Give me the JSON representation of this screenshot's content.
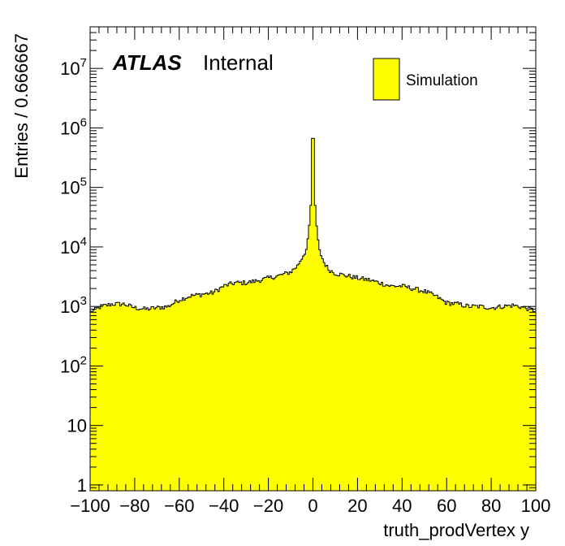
{
  "chart_data": {
    "type": "histogram",
    "xlabel": "truth_prodVertex y",
    "ylabel": "Entries / 0.666667",
    "xlim": [
      -100,
      100
    ],
    "ylim": [
      0.8,
      50000000
    ],
    "y_scale": "log",
    "bin_width": 0.666667,
    "x_ticks": [
      -100,
      -80,
      -60,
      -40,
      -20,
      0,
      20,
      40,
      60,
      80,
      100
    ],
    "x_tick_labels": [
      "−100",
      "−80",
      "−60",
      "−40",
      "−20",
      "0",
      "20",
      "40",
      "60",
      "80",
      "100"
    ],
    "y_ticks": [
      {
        "value": 1,
        "base": "1",
        "exp": ""
      },
      {
        "value": 10,
        "base": "10",
        "exp": ""
      },
      {
        "value": 100,
        "base": "10",
        "exp": "2"
      },
      {
        "value": 1000,
        "base": "10",
        "exp": "3"
      },
      {
        "value": 10000,
        "base": "10",
        "exp": "4"
      },
      {
        "value": 100000,
        "base": "10",
        "exp": "5"
      },
      {
        "value": 1000000,
        "base": "10",
        "exp": "6"
      },
      {
        "value": 10000000,
        "base": "10",
        "exp": "7"
      }
    ],
    "series": [
      {
        "name": "Simulation",
        "color": "#ffff00",
        "edge_color": "#000000",
        "profile": [
          [
            -100,
            800
          ],
          [
            -95,
            1000
          ],
          [
            -90,
            1100
          ],
          [
            -85,
            1100
          ],
          [
            -80,
            950
          ],
          [
            -75,
            900
          ],
          [
            -70,
            950
          ],
          [
            -65,
            1000
          ],
          [
            -60,
            1300
          ],
          [
            -55,
            1500
          ],
          [
            -50,
            1600
          ],
          [
            -45,
            1700
          ],
          [
            -40,
            2200
          ],
          [
            -35,
            2500
          ],
          [
            -30,
            2500
          ],
          [
            -25,
            2700
          ],
          [
            -20,
            3000
          ],
          [
            -15,
            3300
          ],
          [
            -10,
            3800
          ],
          [
            -7,
            4800
          ],
          [
            -5,
            6500
          ],
          [
            -3,
            9000
          ],
          [
            -2,
            15000
          ],
          [
            -1,
            50000
          ],
          [
            -0.5,
            300000
          ],
          [
            0,
            3300000
          ],
          [
            0.5,
            300000
          ],
          [
            1,
            50000
          ],
          [
            2,
            15000
          ],
          [
            3,
            8500
          ],
          [
            5,
            5500
          ],
          [
            7,
            4200
          ],
          [
            10,
            3600
          ],
          [
            15,
            3300
          ],
          [
            20,
            3000
          ],
          [
            25,
            2800
          ],
          [
            30,
            2500
          ],
          [
            35,
            2200
          ],
          [
            40,
            2200
          ],
          [
            45,
            2000
          ],
          [
            50,
            1800
          ],
          [
            55,
            1500
          ],
          [
            60,
            1150
          ],
          [
            65,
            1100
          ],
          [
            70,
            1000
          ],
          [
            75,
            1000
          ],
          [
            80,
            950
          ],
          [
            85,
            1000
          ],
          [
            90,
            1050
          ],
          [
            95,
            950
          ],
          [
            100,
            850
          ]
        ]
      }
    ],
    "atlas_label": "ATLAS",
    "internal_label": "Internal"
  },
  "colors": {
    "fill": "#ffff00",
    "edge": "#000000",
    "frame": "#000000",
    "background": "#ffffff"
  }
}
